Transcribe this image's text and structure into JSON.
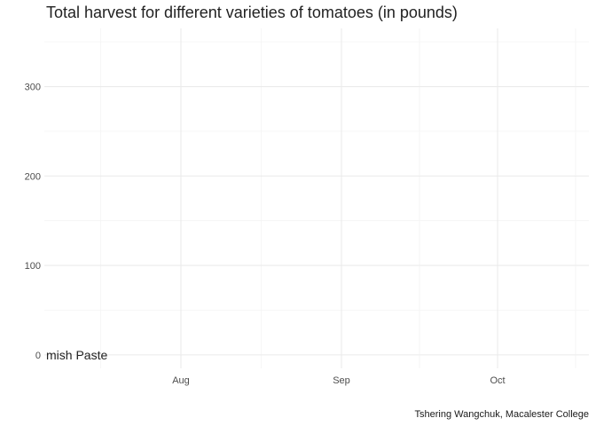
{
  "chart_data": {
    "type": "line",
    "title": "Total harvest for different varieties of tomatoes (in pounds)",
    "caption": "Tshering Wangchuk, Macalester College",
    "xlabel": "",
    "ylabel": "",
    "x_ticks": [
      "Aug",
      "Sep",
      "Oct"
    ],
    "y_ticks": [
      0,
      100,
      200,
      300
    ],
    "ylim": [
      -15,
      365
    ],
    "grid": true,
    "series": [
      {
        "name": "Amish Paste",
        "label_text": "mish Paste",
        "x": [],
        "values": []
      }
    ],
    "visible_series_label": {
      "x_index": 0,
      "y": 0
    }
  }
}
